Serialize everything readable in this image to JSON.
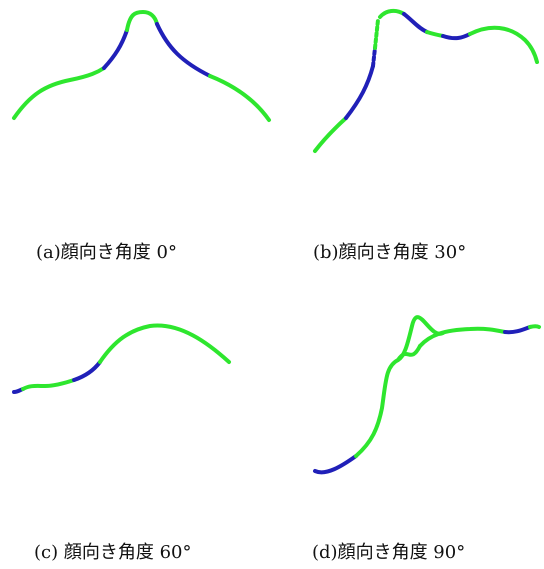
{
  "colors": {
    "segment_a": "#2ee62e",
    "segment_b": "#2020b8"
  },
  "panels": [
    {
      "caption": "(a)顔向き角度 0°"
    },
    {
      "caption": "(b)顔向き角度 30°"
    },
    {
      "caption": "(c) 顔向き角度 60°"
    },
    {
      "caption": "(d)顔向き角度 90°"
    }
  ]
}
